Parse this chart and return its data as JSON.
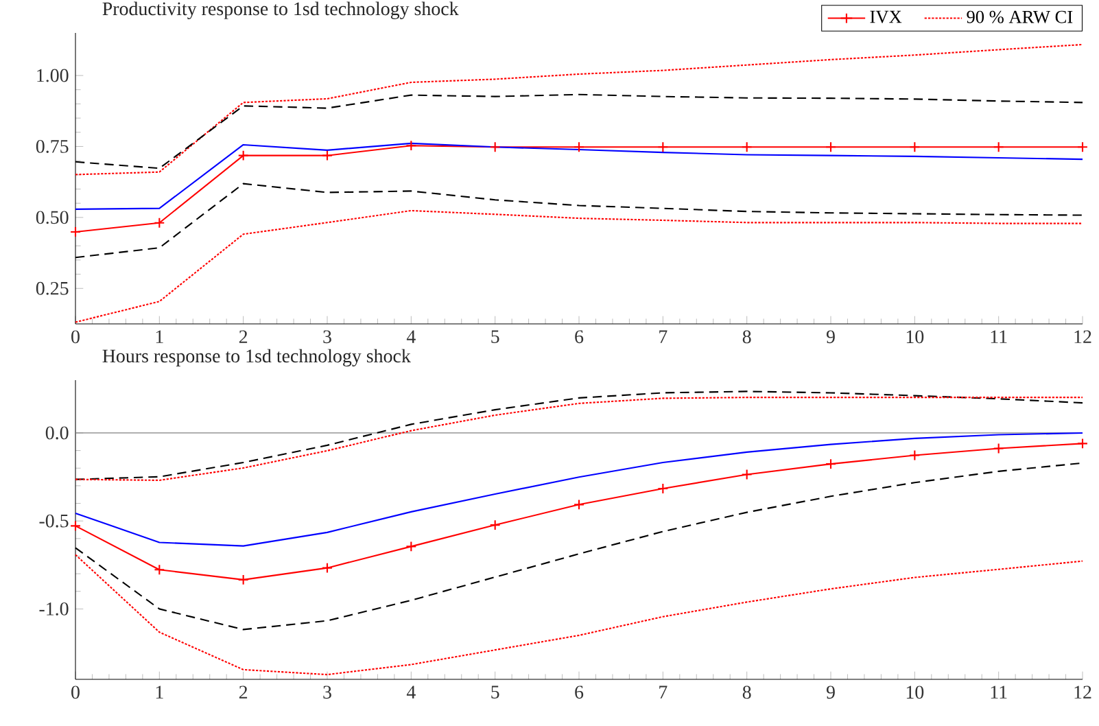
{
  "chart_data": [
    {
      "type": "line",
      "title": "Productivity response to 1sd technology shock",
      "x": [
        0,
        1,
        2,
        3,
        4,
        5,
        6,
        7,
        8,
        9,
        10,
        11,
        12
      ],
      "xlim": [
        0,
        12
      ],
      "xticks": [
        0,
        1,
        2,
        3,
        4,
        5,
        6,
        7,
        8,
        9,
        10,
        11,
        12
      ],
      "ylim": [
        0.125,
        1.15
      ],
      "yticks": [
        {
          "value": 0.25,
          "label": "0.25"
        },
        {
          "value": 0.5,
          "label": "0.50"
        },
        {
          "value": 0.75,
          "label": "0.75"
        },
        {
          "value": 1.0,
          "label": "1.00"
        }
      ],
      "legend": "top right",
      "series": [
        {
          "color": "#ff0000",
          "line_style": "solid",
          "marker": "cross",
          "name": "IVX",
          "values": [
            0.449,
            0.481,
            0.718,
            0.718,
            0.753,
            0.748,
            0.748,
            0.748,
            0.748,
            0.748,
            0.748,
            0.748,
            0.748
          ]
        },
        {
          "color": "#ff0000",
          "line_style": "dotted",
          "name": "90 % ARW CI",
          "values": [
            0.651,
            0.66,
            0.905,
            0.918,
            0.976,
            0.987,
            1.005,
            1.018,
            1.037,
            1.056,
            1.072,
            1.091,
            1.109
          ]
        },
        {
          "color": "#000000",
          "line_style": "dashed",
          "values": [
            0.696,
            0.673,
            0.893,
            0.885,
            0.931,
            0.926,
            0.933,
            0.926,
            0.921,
            0.92,
            0.917,
            0.91,
            0.905
          ]
        },
        {
          "color": "#0000ff",
          "line_style": "solid",
          "values": [
            0.529,
            0.532,
            0.756,
            0.737,
            0.761,
            0.748,
            0.739,
            0.729,
            0.721,
            0.718,
            0.715,
            0.71,
            0.705
          ]
        },
        {
          "color": "#000000",
          "line_style": "dashed",
          "values": [
            0.359,
            0.393,
            0.619,
            0.588,
            0.593,
            0.562,
            0.542,
            0.532,
            0.521,
            0.516,
            0.513,
            0.51,
            0.508
          ]
        },
        {
          "color": "#ff0000",
          "line_style": "dotted",
          "values": [
            0.131,
            0.204,
            0.441,
            0.482,
            0.524,
            0.511,
            0.497,
            0.49,
            0.482,
            0.482,
            0.482,
            0.479,
            0.479
          ]
        }
      ]
    },
    {
      "type": "line",
      "title": "Hours response to 1sd technology shock",
      "x": [
        0,
        1,
        2,
        3,
        4,
        5,
        6,
        7,
        8,
        9,
        10,
        11,
        12
      ],
      "xlim": [
        0,
        12
      ],
      "xticks": [
        0,
        1,
        2,
        3,
        4,
        5,
        6,
        7,
        8,
        9,
        10,
        11,
        12
      ],
      "ylim": [
        -1.4,
        0.3
      ],
      "yticks": [
        {
          "value": -1.0,
          "label": "-1.0"
        },
        {
          "value": -0.5,
          "label": "-0.5"
        },
        {
          "value": 0.0,
          "label": "0.0"
        }
      ],
      "ref_lines": [
        {
          "axis": "y",
          "value": 0,
          "color": "#808080"
        }
      ],
      "series": [
        {
          "color": "#000000",
          "line_style": "dashed",
          "values": [
            -0.264,
            -0.249,
            -0.168,
            -0.07,
            0.049,
            0.132,
            0.199,
            0.228,
            0.236,
            0.228,
            0.212,
            0.194,
            0.171
          ]
        },
        {
          "color": "#ff0000",
          "line_style": "dotted",
          "values": [
            -0.264,
            -0.269,
            -0.199,
            -0.101,
            0.013,
            0.101,
            0.168,
            0.197,
            0.202,
            0.202,
            0.202,
            0.202,
            0.202
          ]
        },
        {
          "color": "#0000ff",
          "line_style": "solid",
          "values": [
            -0.456,
            -0.622,
            -0.642,
            -0.565,
            -0.448,
            -0.347,
            -0.251,
            -0.168,
            -0.109,
            -0.065,
            -0.031,
            -0.01,
            0.0
          ]
        },
        {
          "color": "#ff0000",
          "line_style": "solid",
          "marker": "cross",
          "values": [
            -0.528,
            -0.777,
            -0.834,
            -0.767,
            -0.645,
            -0.523,
            -0.407,
            -0.316,
            -0.236,
            -0.176,
            -0.127,
            -0.088,
            -0.06
          ]
        },
        {
          "color": "#000000",
          "line_style": "dashed",
          "values": [
            -0.653,
            -1.0,
            -1.117,
            -1.067,
            -0.951,
            -0.819,
            -0.687,
            -0.56,
            -0.451,
            -0.36,
            -0.282,
            -0.218,
            -0.171
          ]
        },
        {
          "color": "#ff0000",
          "line_style": "dotted",
          "values": [
            -0.692,
            -1.132,
            -1.345,
            -1.373,
            -1.316,
            -1.233,
            -1.15,
            -1.044,
            -0.961,
            -0.886,
            -0.821,
            -0.775,
            -0.728
          ]
        }
      ]
    }
  ]
}
